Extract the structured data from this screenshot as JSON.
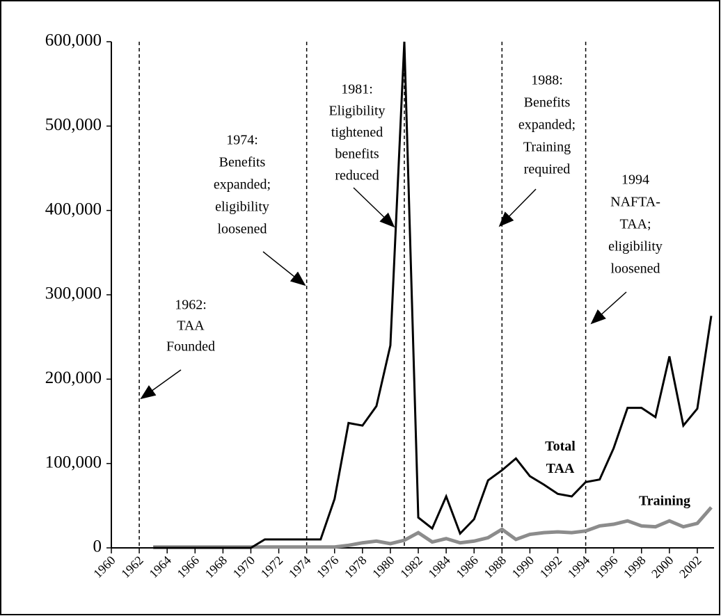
{
  "chart_data": {
    "type": "line",
    "x": [
      1963,
      1964,
      1965,
      1966,
      1967,
      1968,
      1969,
      1970,
      1971,
      1972,
      1973,
      1974,
      1975,
      1976,
      1977,
      1978,
      1979,
      1980,
      1981,
      1982,
      1983,
      1984,
      1985,
      1986,
      1987,
      1988,
      1989,
      1990,
      1991,
      1992,
      1993,
      1994,
      1995,
      1996,
      1997,
      1998,
      1999,
      2000,
      2001,
      2002,
      2003
    ],
    "series": [
      {
        "name": "Total TAA",
        "color": "#000000",
        "values": [
          0,
          0,
          0,
          0,
          0,
          0,
          0,
          0,
          10000,
          10000,
          10000,
          10000,
          10000,
          58000,
          148000,
          145000,
          168000,
          240000,
          600000,
          36000,
          23000,
          61000,
          17000,
          34000,
          80000,
          92000,
          106000,
          85000,
          75000,
          64000,
          61000,
          78000,
          81000,
          118000,
          166000,
          166000,
          155000,
          227000,
          145000,
          165000,
          275000
        ]
      },
      {
        "name": "Training",
        "color": "#8c8c8c",
        "values": [
          1000,
          1000,
          1000,
          1000,
          1000,
          1000,
          1000,
          1000,
          1000,
          1000,
          1000,
          1000,
          1000,
          1000,
          3000,
          6000,
          8000,
          5000,
          9000,
          18000,
          7000,
          11000,
          6000,
          8000,
          12000,
          22000,
          10000,
          16000,
          18000,
          19000,
          18000,
          20000,
          26000,
          28000,
          32000,
          26000,
          25000,
          32000,
          25000,
          29000,
          48000
        ]
      }
    ],
    "xlim": [
      1960,
      2003
    ],
    "xticks": [
      1960,
      1962,
      1964,
      1966,
      1968,
      1970,
      1972,
      1974,
      1976,
      1978,
      1980,
      1982,
      1984,
      1986,
      1988,
      1990,
      1992,
      1994,
      1996,
      1998,
      2000,
      2002
    ],
    "ylim": [
      0,
      600000
    ],
    "yticks": [
      0,
      {
        "value": 100000,
        "label": "100,000"
      },
      {
        "value": 200000,
        "label": "200,000"
      },
      {
        "value": 300000,
        "label": "300,000"
      },
      {
        "value": 400000,
        "label": "400,000"
      },
      {
        "value": 500000,
        "label": "500,000"
      },
      {
        "value": 600000,
        "label": "600,000"
      }
    ],
    "events": [
      {
        "year": 1962,
        "lines": [
          "1962:",
          "TAA",
          "Founded"
        ]
      },
      {
        "year": 1974,
        "lines": [
          "1974:",
          "Benefits",
          "expanded;",
          "eligibility",
          "loosened"
        ]
      },
      {
        "year": 1981,
        "lines": [
          "1981:",
          "Eligibility",
          "tightened",
          "benefits",
          "reduced"
        ]
      },
      {
        "year": 1988,
        "lines": [
          "1988:",
          "Benefits",
          "expanded;",
          "Training",
          "required"
        ]
      },
      {
        "year": 1994,
        "lines": [
          "1994",
          "NAFTA-",
          "TAA;",
          "eligibility",
          "loosened"
        ]
      }
    ]
  }
}
